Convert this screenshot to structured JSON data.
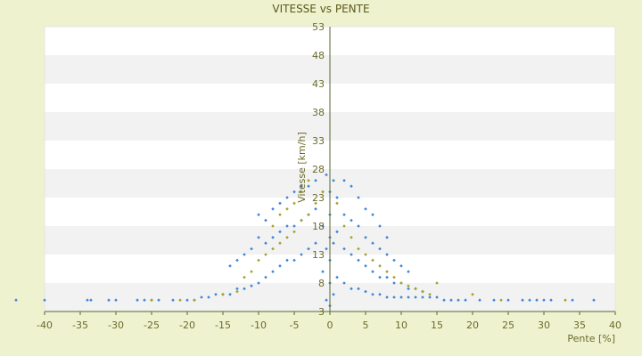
{
  "chart_data": {
    "type": "scatter",
    "title": "VITESSE vs PENTE",
    "xlabel": "Pente [%]",
    "ylabel": "Vitesse [km/h]",
    "xlim": [
      -40,
      40
    ],
    "ylim": [
      3,
      53
    ],
    "xticks": [
      -40,
      -35,
      -30,
      -25,
      -20,
      -15,
      -10,
      -5,
      0,
      5,
      10,
      15,
      20,
      25,
      30,
      35,
      40
    ],
    "yticks": [
      3,
      8,
      13,
      18,
      23,
      28,
      33,
      38,
      43,
      48,
      53
    ],
    "grid": "horizontal bands",
    "legend": "none",
    "colors": {
      "page_background": "#eef2cf",
      "plot_background": "#ffffff",
      "band": "#f2f2f2",
      "series_1": "#3d86d6",
      "series_2": "#a3a32a",
      "axis": "#556b2f",
      "text": "#6b6b2a"
    },
    "series": [
      {
        "color": "#3d86d6",
        "points": [
          [
            -44,
            5
          ],
          [
            -40,
            5
          ],
          [
            -34,
            5
          ],
          [
            -33.5,
            5
          ],
          [
            -31,
            5
          ],
          [
            -30,
            5
          ],
          [
            -27,
            5
          ],
          [
            -26,
            5
          ],
          [
            -25,
            5
          ],
          [
            -24,
            5
          ],
          [
            -22,
            5
          ],
          [
            -20,
            5
          ],
          [
            -19,
            5
          ],
          [
            -18,
            5.5
          ],
          [
            -17,
            5.5
          ],
          [
            -16,
            6
          ],
          [
            -15,
            6
          ],
          [
            -14,
            6
          ],
          [
            -14,
            11
          ],
          [
            -13,
            7
          ],
          [
            -13,
            12
          ],
          [
            -12,
            7
          ],
          [
            -12,
            13
          ],
          [
            -11,
            7.5
          ],
          [
            -11,
            14
          ],
          [
            -10,
            8
          ],
          [
            -10,
            16
          ],
          [
            -10,
            20
          ],
          [
            -9,
            9
          ],
          [
            -9,
            15
          ],
          [
            -9,
            19
          ],
          [
            -8,
            10
          ],
          [
            -8,
            16
          ],
          [
            -8,
            21
          ],
          [
            -7,
            11
          ],
          [
            -7,
            17
          ],
          [
            -7,
            22
          ],
          [
            -6,
            12
          ],
          [
            -6,
            18
          ],
          [
            -6,
            23
          ],
          [
            -5,
            12
          ],
          [
            -5,
            18
          ],
          [
            -5,
            24
          ],
          [
            -4,
            13
          ],
          [
            -4,
            19
          ],
          [
            -4,
            25
          ],
          [
            -3,
            14
          ],
          [
            -3,
            20
          ],
          [
            -3,
            25
          ],
          [
            -2,
            15
          ],
          [
            -2,
            21
          ],
          [
            -2,
            26
          ],
          [
            -1,
            10
          ],
          [
            -1,
            18
          ],
          [
            -1,
            24
          ],
          [
            -0.5,
            5
          ],
          [
            -0.5,
            14
          ],
          [
            -0.5,
            27
          ],
          [
            0,
            4
          ],
          [
            0,
            8
          ],
          [
            0,
            12
          ],
          [
            0,
            16
          ],
          [
            0,
            20
          ],
          [
            0,
            24
          ],
          [
            0.5,
            6
          ],
          [
            0.5,
            15
          ],
          [
            0.5,
            26
          ],
          [
            1,
            9
          ],
          [
            1,
            17
          ],
          [
            1,
            23
          ],
          [
            2,
            8
          ],
          [
            2,
            14
          ],
          [
            2,
            20
          ],
          [
            2,
            26
          ],
          [
            3,
            7
          ],
          [
            3,
            13
          ],
          [
            3,
            19
          ],
          [
            3,
            25
          ],
          [
            4,
            7
          ],
          [
            4,
            12
          ],
          [
            4,
            18
          ],
          [
            4,
            23
          ],
          [
            5,
            6.5
          ],
          [
            5,
            11
          ],
          [
            5,
            16
          ],
          [
            5,
            21
          ],
          [
            6,
            6
          ],
          [
            6,
            10
          ],
          [
            6,
            15
          ],
          [
            6,
            20
          ],
          [
            7,
            6
          ],
          [
            7,
            9
          ],
          [
            7,
            14
          ],
          [
            7,
            18
          ],
          [
            8,
            5.5
          ],
          [
            8,
            9
          ],
          [
            8,
            13
          ],
          [
            8,
            16
          ],
          [
            9,
            5.5
          ],
          [
            9,
            8
          ],
          [
            9,
            12
          ],
          [
            10,
            5.5
          ],
          [
            10,
            8
          ],
          [
            10,
            11
          ],
          [
            11,
            5.5
          ],
          [
            11,
            7
          ],
          [
            11,
            10
          ],
          [
            12,
            5.5
          ],
          [
            12,
            7
          ],
          [
            13,
            5.5
          ],
          [
            13,
            6.5
          ],
          [
            14,
            5.5
          ],
          [
            15,
            5.5
          ],
          [
            16,
            5
          ],
          [
            17,
            5
          ],
          [
            18,
            5
          ],
          [
            19,
            5
          ],
          [
            21,
            5
          ],
          [
            23,
            5
          ],
          [
            25,
            5
          ],
          [
            27,
            5
          ],
          [
            28,
            5
          ],
          [
            29,
            5
          ],
          [
            30,
            5
          ],
          [
            31,
            5
          ],
          [
            34,
            5
          ],
          [
            37,
            5
          ]
        ]
      },
      {
        "color": "#a3a32a",
        "points": [
          [
            -25,
            5
          ],
          [
            -21,
            5
          ],
          [
            -19,
            5
          ],
          [
            -15,
            6
          ],
          [
            -13,
            6.5
          ],
          [
            -12,
            9
          ],
          [
            -11,
            10
          ],
          [
            -10,
            12
          ],
          [
            -9,
            13
          ],
          [
            -8,
            14
          ],
          [
            -8,
            18
          ],
          [
            -7,
            15
          ],
          [
            -7,
            20
          ],
          [
            -6,
            16
          ],
          [
            -6,
            21
          ],
          [
            -5,
            17
          ],
          [
            -5,
            22
          ],
          [
            -4,
            19
          ],
          [
            -4,
            24
          ],
          [
            -3,
            20
          ],
          [
            -3,
            26
          ],
          [
            -2,
            22
          ],
          [
            -1,
            24
          ],
          [
            1,
            22
          ],
          [
            2,
            18
          ],
          [
            3,
            16
          ],
          [
            4,
            14
          ],
          [
            5,
            13
          ],
          [
            6,
            12
          ],
          [
            7,
            11
          ],
          [
            8,
            10
          ],
          [
            9,
            9
          ],
          [
            10,
            8
          ],
          [
            11,
            7.5
          ],
          [
            12,
            7
          ],
          [
            13,
            6.5
          ],
          [
            14,
            6
          ],
          [
            15,
            8
          ],
          [
            20,
            6
          ],
          [
            24,
            5
          ],
          [
            33,
            5
          ]
        ]
      }
    ]
  }
}
